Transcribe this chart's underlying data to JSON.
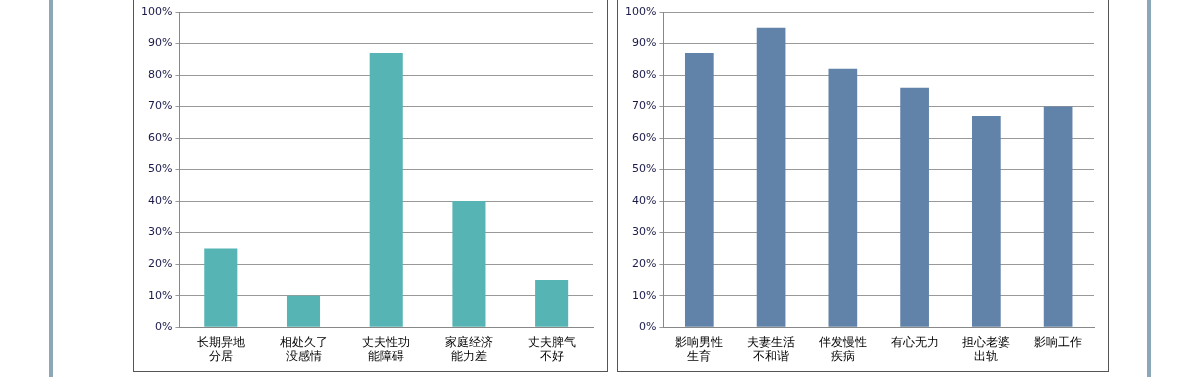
{
  "chart_data": [
    {
      "type": "bar",
      "categories": [
        "长期异地分居",
        "相处久了没感情",
        "丈夫性功能障碍",
        "家庭经济能力差",
        "丈夫脾气不好"
      ],
      "values": [
        25,
        10,
        87,
        40,
        15
      ],
      "color": "#56b4b5",
      "ylim": [
        0,
        100
      ],
      "yticks": [
        {
          "value": 0,
          "label": "0%"
        },
        {
          "value": 10,
          "label": "10%"
        },
        {
          "value": 20,
          "label": "20%"
        },
        {
          "value": 30,
          "label": "30%"
        },
        {
          "value": 40,
          "label": "40%"
        },
        {
          "value": 50,
          "label": "50%"
        },
        {
          "value": 60,
          "label": "60%"
        },
        {
          "value": 70,
          "label": "70%"
        },
        {
          "value": 80,
          "label": "80%"
        },
        {
          "value": 90,
          "label": "90%"
        },
        {
          "value": 100,
          "label": "100%"
        }
      ],
      "grid": "y",
      "legend": false
    },
    {
      "type": "bar",
      "categories": [
        "影响男性生育",
        "夫妻生活不和谐",
        "伴发慢性疾病",
        "有心无力",
        "担心老婆出轨",
        "影响工作"
      ],
      "values": [
        87,
        95,
        82,
        76,
        67,
        70
      ],
      "color": "#6283a9",
      "ylim": [
        0,
        100
      ],
      "yticks": [
        {
          "value": 0,
          "label": "0%"
        },
        {
          "value": 10,
          "label": "10%"
        },
        {
          "value": 20,
          "label": "20%"
        },
        {
          "value": 30,
          "label": "30%"
        },
        {
          "value": 40,
          "label": "40%"
        },
        {
          "value": 50,
          "label": "50%"
        },
        {
          "value": 60,
          "label": "60%"
        },
        {
          "value": 70,
          "label": "70%"
        },
        {
          "value": 80,
          "label": "80%"
        },
        {
          "value": 90,
          "label": "90%"
        },
        {
          "value": 100,
          "label": "100%"
        }
      ],
      "grid": "y",
      "legend": false
    }
  ]
}
